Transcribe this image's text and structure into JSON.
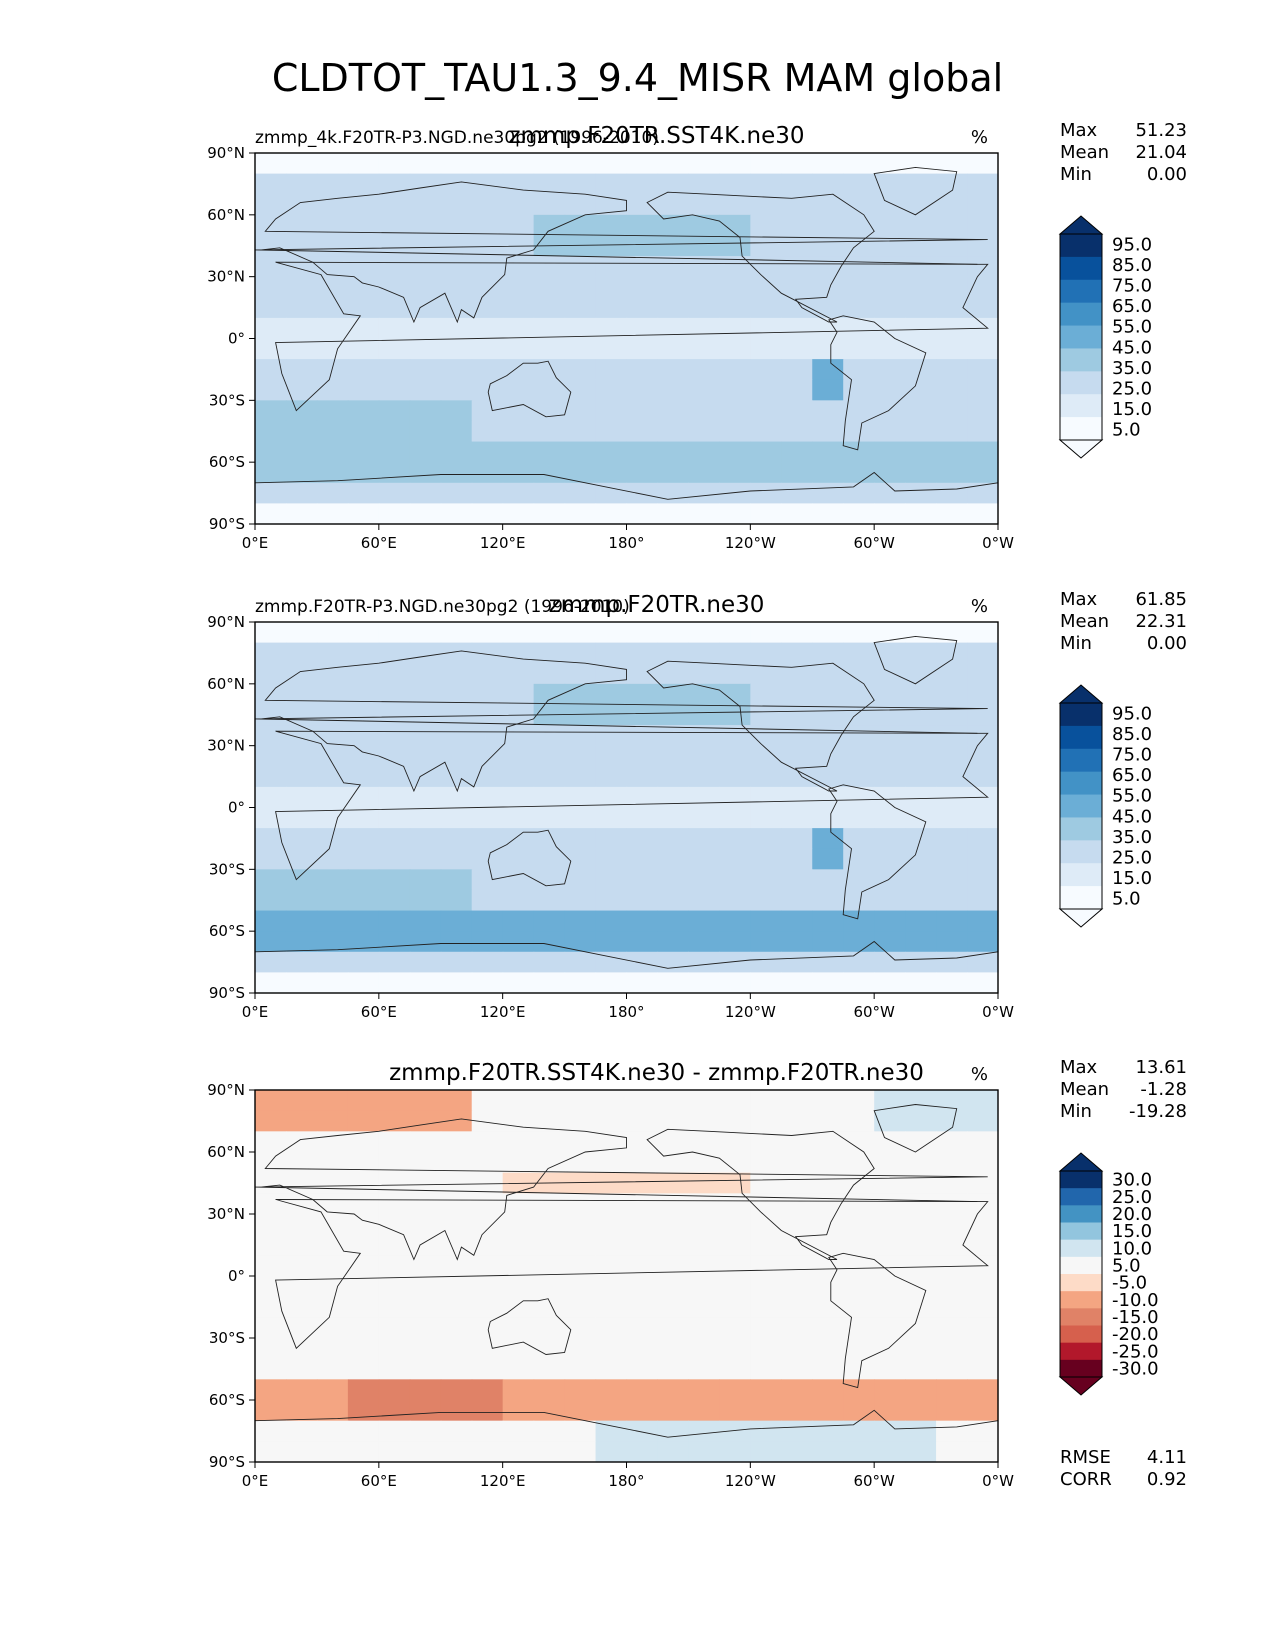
{
  "title": "CLDTOT_TAU1.3_9.4_MISR MAM global",
  "chart_data": [
    {
      "type": "heatmap",
      "subplot": "top",
      "left_label": "zmmp_4k.F20TR-P3.NGD.ne30pg2 (1996-2010)",
      "center_title": "zmmp.F20TR.SST4K.ne30",
      "units": "%",
      "stats": [
        {
          "label": "Max",
          "value": "51.23"
        },
        {
          "label": "Mean",
          "value": "21.04"
        },
        {
          "label": "Min",
          "value": "0.00"
        }
      ],
      "x_ticks": [
        "0°E",
        "60°E",
        "120°E",
        "180°",
        "120°W",
        "60°W",
        "0°W"
      ],
      "y_ticks": [
        "90°N",
        "60°N",
        "30°N",
        "0°",
        "30°S",
        "60°S",
        "90°S"
      ],
      "colorbar_levels": [
        "95.0",
        "85.0",
        "75.0",
        "65.0",
        "55.0",
        "45.0",
        "35.0",
        "25.0",
        "15.0",
        "5.0"
      ],
      "colorbar_colors": [
        "#08306b",
        "#08519c",
        "#2171b5",
        "#4292c6",
        "#6baed6",
        "#9ecae1",
        "#c6dbef",
        "#deebf7",
        "#f7fbff"
      ]
    },
    {
      "type": "heatmap",
      "subplot": "middle",
      "left_label": "zmmp.F20TR-P3.NGD.ne30pg2 (1996-2010)",
      "center_title": "zmmp.F20TR.ne30",
      "units": "%",
      "stats": [
        {
          "label": "Max",
          "value": "61.85"
        },
        {
          "label": "Mean",
          "value": "22.31"
        },
        {
          "label": "Min",
          "value": "0.00"
        }
      ],
      "x_ticks": [
        "0°E",
        "60°E",
        "120°E",
        "180°",
        "120°W",
        "60°W",
        "0°W"
      ],
      "y_ticks": [
        "90°N",
        "60°N",
        "30°N",
        "0°",
        "30°S",
        "60°S",
        "90°S"
      ],
      "colorbar_levels": [
        "95.0",
        "85.0",
        "75.0",
        "65.0",
        "55.0",
        "45.0",
        "35.0",
        "25.0",
        "15.0",
        "5.0"
      ],
      "colorbar_colors": [
        "#08306b",
        "#08519c",
        "#2171b5",
        "#4292c6",
        "#6baed6",
        "#9ecae1",
        "#c6dbef",
        "#deebf7",
        "#f7fbff"
      ]
    },
    {
      "type": "heatmap",
      "subplot": "bottom",
      "left_label": "",
      "center_title": "zmmp.F20TR.SST4K.ne30 - zmmp.F20TR.ne30",
      "units": "%",
      "stats": [
        {
          "label": "Max",
          "value": "13.61"
        },
        {
          "label": "Mean",
          "value": "-1.28"
        },
        {
          "label": "Min",
          "value": "-19.28"
        }
      ],
      "x_ticks": [
        "0°E",
        "60°E",
        "120°E",
        "180°",
        "120°W",
        "60°W",
        "0°W"
      ],
      "y_ticks": [
        "90°N",
        "60°N",
        "30°N",
        "0°",
        "30°S",
        "60°S",
        "90°S"
      ],
      "colorbar_levels": [
        "30.0",
        "25.0",
        "20.0",
        "15.0",
        "10.0",
        "5.0",
        "-5.0",
        "-10.0",
        "-15.0",
        "-20.0",
        "-25.0",
        "-30.0"
      ],
      "colorbar_colors": [
        "#08306b",
        "#2166ac",
        "#4393c3",
        "#92c5de",
        "#d1e5f0",
        "#f7f7f7",
        "#fddbc7",
        "#f4a582",
        "#e08267",
        "#d6604d",
        "#b2182b",
        "#67001f"
      ],
      "footer_stats": [
        {
          "label": "RMSE",
          "value": "4.11"
        },
        {
          "label": "CORR",
          "value": "0.92"
        }
      ]
    }
  ]
}
